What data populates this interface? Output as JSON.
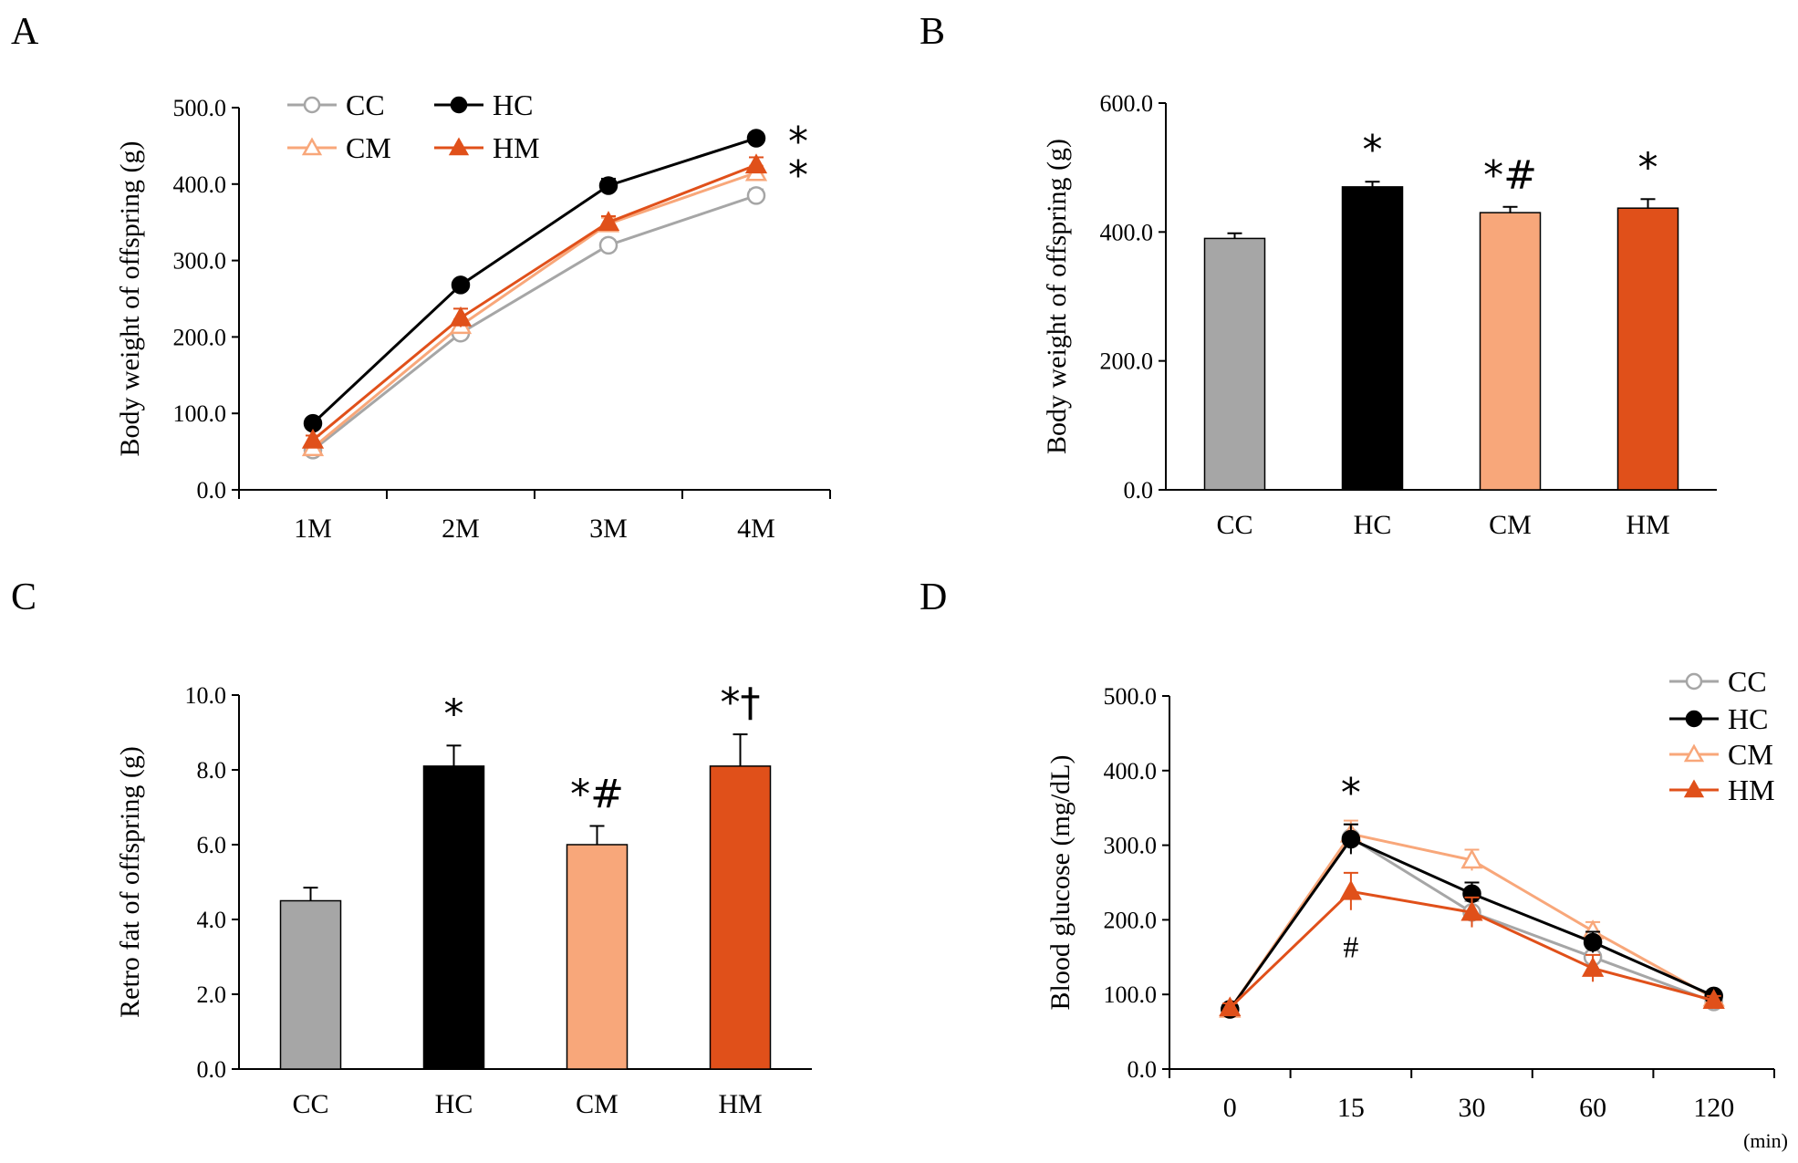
{
  "figure": {
    "panels": [
      "A",
      "B",
      "C",
      "D"
    ]
  },
  "colors": {
    "CC": "#a6a6a6",
    "HC": "#000000",
    "CM": "#f8a77a",
    "HM": "#e0501a",
    "axis": "#000000"
  },
  "chart_data": [
    {
      "panel": "A",
      "type": "line",
      "title": "",
      "xlabel": "",
      "ylabel": "Body weight of offspring (g)",
      "ylim": [
        0,
        500
      ],
      "yticks": [
        "0.0",
        "100.0",
        "200.0",
        "300.0",
        "400.0",
        "500.0"
      ],
      "categories": [
        "1M",
        "2M",
        "3M",
        "4M"
      ],
      "legend_position": "top-left",
      "series": [
        {
          "name": "CC",
          "marker": "open-circle",
          "values": [
            52,
            205,
            320,
            385
          ],
          "errors": [
            5,
            7,
            7,
            8
          ]
        },
        {
          "name": "HC",
          "marker": "filled-circle",
          "values": [
            87,
            268,
            398,
            460
          ],
          "errors": [
            5,
            6,
            9,
            7
          ]
        },
        {
          "name": "CM",
          "marker": "open-triangle",
          "values": [
            55,
            215,
            348,
            415
          ],
          "errors": [
            5,
            8,
            8,
            9
          ]
        },
        {
          "name": "HM",
          "marker": "filled-triangle",
          "values": [
            65,
            225,
            350,
            425
          ],
          "errors": [
            6,
            12,
            8,
            10
          ]
        }
      ],
      "annotations": [
        {
          "text": "*",
          "x": "4M",
          "y": 460
        },
        {
          "text": "*",
          "x": "4M",
          "y": 425
        }
      ]
    },
    {
      "panel": "B",
      "type": "bar",
      "title": "",
      "xlabel": "",
      "ylabel": "Body weight of offspring (g)",
      "ylim": [
        0,
        600
      ],
      "yticks": [
        "0.0",
        "200.0",
        "400.0",
        "600.0"
      ],
      "categories": [
        "CC",
        "HC",
        "CM",
        "HM"
      ],
      "values": [
        390,
        470,
        430,
        437
      ],
      "errors": [
        8,
        8,
        9,
        14
      ],
      "annotations": [
        {
          "category": "HC",
          "text": "*"
        },
        {
          "category": "CM",
          "text": "*#"
        },
        {
          "category": "HM",
          "text": "*"
        }
      ]
    },
    {
      "panel": "C",
      "type": "bar",
      "title": "",
      "xlabel": "",
      "ylabel": "Retro fat of offspring (g)",
      "ylim": [
        0,
        10
      ],
      "yticks": [
        "0.0",
        "2.0",
        "4.0",
        "6.0",
        "8.0",
        "10.0"
      ],
      "categories": [
        "CC",
        "HC",
        "CM",
        "HM"
      ],
      "values": [
        4.5,
        8.1,
        6.0,
        8.1
      ],
      "errors": [
        0.35,
        0.55,
        0.5,
        0.85
      ],
      "annotations": [
        {
          "category": "HC",
          "text": "*"
        },
        {
          "category": "CM",
          "text": "*#"
        },
        {
          "category": "HM",
          "text": "*†"
        }
      ]
    },
    {
      "panel": "D",
      "type": "line",
      "title": "",
      "xlabel": "(min)",
      "ylabel": "Blood glucose (mg/dL)",
      "ylim": [
        0,
        500
      ],
      "yticks": [
        "0.0",
        "100.0",
        "200.0",
        "300.0",
        "400.0",
        "500.0"
      ],
      "categories": [
        "0",
        "15",
        "30",
        "60",
        "120"
      ],
      "legend_position": "top-right",
      "series": [
        {
          "name": "CC",
          "marker": "open-circle",
          "values": [
            80,
            310,
            210,
            150,
            90
          ],
          "errors": [
            6,
            18,
            15,
            12,
            6
          ]
        },
        {
          "name": "HC",
          "marker": "filled-circle",
          "values": [
            80,
            308,
            235,
            170,
            98
          ],
          "errors": [
            6,
            20,
            15,
            14,
            6
          ]
        },
        {
          "name": "CM",
          "marker": "open-triangle",
          "values": [
            80,
            315,
            280,
            185,
            95
          ],
          "errors": [
            6,
            18,
            14,
            12,
            6
          ]
        },
        {
          "name": "HM",
          "marker": "filled-triangle",
          "values": [
            82,
            238,
            210,
            135,
            92
          ],
          "errors": [
            6,
            25,
            20,
            18,
            6
          ]
        }
      ],
      "annotations": [
        {
          "text": "*",
          "x": "15",
          "y": 310,
          "position": "above"
        },
        {
          "text": "#",
          "x": "15",
          "y": 238,
          "position": "below"
        }
      ]
    }
  ]
}
